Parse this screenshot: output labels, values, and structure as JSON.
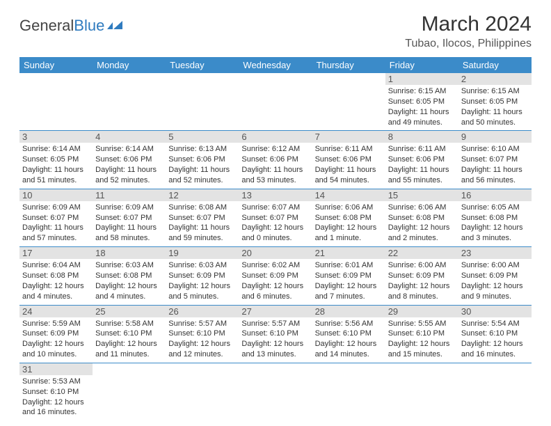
{
  "logo": {
    "text1": "General",
    "text2": "Blue"
  },
  "title": "March 2024",
  "location": "Tubao, Ilocos, Philippines",
  "colors": {
    "header_bg": "#3b8bc9",
    "header_text": "#ffffff",
    "daynum_bg": "#e3e3e3",
    "border": "#3b8bc9",
    "text": "#333333",
    "logo_blue": "#2f7bbf"
  },
  "weekdays": [
    "Sunday",
    "Monday",
    "Tuesday",
    "Wednesday",
    "Thursday",
    "Friday",
    "Saturday"
  ],
  "weeks": [
    [
      {
        "day": "",
        "lines": [
          "",
          "",
          "",
          ""
        ]
      },
      {
        "day": "",
        "lines": [
          "",
          "",
          "",
          ""
        ]
      },
      {
        "day": "",
        "lines": [
          "",
          "",
          "",
          ""
        ]
      },
      {
        "day": "",
        "lines": [
          "",
          "",
          "",
          ""
        ]
      },
      {
        "day": "",
        "lines": [
          "",
          "",
          "",
          ""
        ]
      },
      {
        "day": "1",
        "lines": [
          "Sunrise: 6:15 AM",
          "Sunset: 6:05 PM",
          "Daylight: 11 hours",
          "and 49 minutes."
        ]
      },
      {
        "day": "2",
        "lines": [
          "Sunrise: 6:15 AM",
          "Sunset: 6:05 PM",
          "Daylight: 11 hours",
          "and 50 minutes."
        ]
      }
    ],
    [
      {
        "day": "3",
        "lines": [
          "Sunrise: 6:14 AM",
          "Sunset: 6:05 PM",
          "Daylight: 11 hours",
          "and 51 minutes."
        ]
      },
      {
        "day": "4",
        "lines": [
          "Sunrise: 6:14 AM",
          "Sunset: 6:06 PM",
          "Daylight: 11 hours",
          "and 52 minutes."
        ]
      },
      {
        "day": "5",
        "lines": [
          "Sunrise: 6:13 AM",
          "Sunset: 6:06 PM",
          "Daylight: 11 hours",
          "and 52 minutes."
        ]
      },
      {
        "day": "6",
        "lines": [
          "Sunrise: 6:12 AM",
          "Sunset: 6:06 PM",
          "Daylight: 11 hours",
          "and 53 minutes."
        ]
      },
      {
        "day": "7",
        "lines": [
          "Sunrise: 6:11 AM",
          "Sunset: 6:06 PM",
          "Daylight: 11 hours",
          "and 54 minutes."
        ]
      },
      {
        "day": "8",
        "lines": [
          "Sunrise: 6:11 AM",
          "Sunset: 6:06 PM",
          "Daylight: 11 hours",
          "and 55 minutes."
        ]
      },
      {
        "day": "9",
        "lines": [
          "Sunrise: 6:10 AM",
          "Sunset: 6:07 PM",
          "Daylight: 11 hours",
          "and 56 minutes."
        ]
      }
    ],
    [
      {
        "day": "10",
        "lines": [
          "Sunrise: 6:09 AM",
          "Sunset: 6:07 PM",
          "Daylight: 11 hours",
          "and 57 minutes."
        ]
      },
      {
        "day": "11",
        "lines": [
          "Sunrise: 6:09 AM",
          "Sunset: 6:07 PM",
          "Daylight: 11 hours",
          "and 58 minutes."
        ]
      },
      {
        "day": "12",
        "lines": [
          "Sunrise: 6:08 AM",
          "Sunset: 6:07 PM",
          "Daylight: 11 hours",
          "and 59 minutes."
        ]
      },
      {
        "day": "13",
        "lines": [
          "Sunrise: 6:07 AM",
          "Sunset: 6:07 PM",
          "Daylight: 12 hours",
          "and 0 minutes."
        ]
      },
      {
        "day": "14",
        "lines": [
          "Sunrise: 6:06 AM",
          "Sunset: 6:08 PM",
          "Daylight: 12 hours",
          "and 1 minute."
        ]
      },
      {
        "day": "15",
        "lines": [
          "Sunrise: 6:06 AM",
          "Sunset: 6:08 PM",
          "Daylight: 12 hours",
          "and 2 minutes."
        ]
      },
      {
        "day": "16",
        "lines": [
          "Sunrise: 6:05 AM",
          "Sunset: 6:08 PM",
          "Daylight: 12 hours",
          "and 3 minutes."
        ]
      }
    ],
    [
      {
        "day": "17",
        "lines": [
          "Sunrise: 6:04 AM",
          "Sunset: 6:08 PM",
          "Daylight: 12 hours",
          "and 4 minutes."
        ]
      },
      {
        "day": "18",
        "lines": [
          "Sunrise: 6:03 AM",
          "Sunset: 6:08 PM",
          "Daylight: 12 hours",
          "and 4 minutes."
        ]
      },
      {
        "day": "19",
        "lines": [
          "Sunrise: 6:03 AM",
          "Sunset: 6:09 PM",
          "Daylight: 12 hours",
          "and 5 minutes."
        ]
      },
      {
        "day": "20",
        "lines": [
          "Sunrise: 6:02 AM",
          "Sunset: 6:09 PM",
          "Daylight: 12 hours",
          "and 6 minutes."
        ]
      },
      {
        "day": "21",
        "lines": [
          "Sunrise: 6:01 AM",
          "Sunset: 6:09 PM",
          "Daylight: 12 hours",
          "and 7 minutes."
        ]
      },
      {
        "day": "22",
        "lines": [
          "Sunrise: 6:00 AM",
          "Sunset: 6:09 PM",
          "Daylight: 12 hours",
          "and 8 minutes."
        ]
      },
      {
        "day": "23",
        "lines": [
          "Sunrise: 6:00 AM",
          "Sunset: 6:09 PM",
          "Daylight: 12 hours",
          "and 9 minutes."
        ]
      }
    ],
    [
      {
        "day": "24",
        "lines": [
          "Sunrise: 5:59 AM",
          "Sunset: 6:09 PM",
          "Daylight: 12 hours",
          "and 10 minutes."
        ]
      },
      {
        "day": "25",
        "lines": [
          "Sunrise: 5:58 AM",
          "Sunset: 6:10 PM",
          "Daylight: 12 hours",
          "and 11 minutes."
        ]
      },
      {
        "day": "26",
        "lines": [
          "Sunrise: 5:57 AM",
          "Sunset: 6:10 PM",
          "Daylight: 12 hours",
          "and 12 minutes."
        ]
      },
      {
        "day": "27",
        "lines": [
          "Sunrise: 5:57 AM",
          "Sunset: 6:10 PM",
          "Daylight: 12 hours",
          "and 13 minutes."
        ]
      },
      {
        "day": "28",
        "lines": [
          "Sunrise: 5:56 AM",
          "Sunset: 6:10 PM",
          "Daylight: 12 hours",
          "and 14 minutes."
        ]
      },
      {
        "day": "29",
        "lines": [
          "Sunrise: 5:55 AM",
          "Sunset: 6:10 PM",
          "Daylight: 12 hours",
          "and 15 minutes."
        ]
      },
      {
        "day": "30",
        "lines": [
          "Sunrise: 5:54 AM",
          "Sunset: 6:10 PM",
          "Daylight: 12 hours",
          "and 16 minutes."
        ]
      }
    ],
    [
      {
        "day": "31",
        "lines": [
          "Sunrise: 5:53 AM",
          "Sunset: 6:10 PM",
          "Daylight: 12 hours",
          "and 16 minutes."
        ]
      },
      {
        "day": "",
        "lines": [
          "",
          "",
          "",
          ""
        ]
      },
      {
        "day": "",
        "lines": [
          "",
          "",
          "",
          ""
        ]
      },
      {
        "day": "",
        "lines": [
          "",
          "",
          "",
          ""
        ]
      },
      {
        "day": "",
        "lines": [
          "",
          "",
          "",
          ""
        ]
      },
      {
        "day": "",
        "lines": [
          "",
          "",
          "",
          ""
        ]
      },
      {
        "day": "",
        "lines": [
          "",
          "",
          "",
          ""
        ]
      }
    ]
  ]
}
